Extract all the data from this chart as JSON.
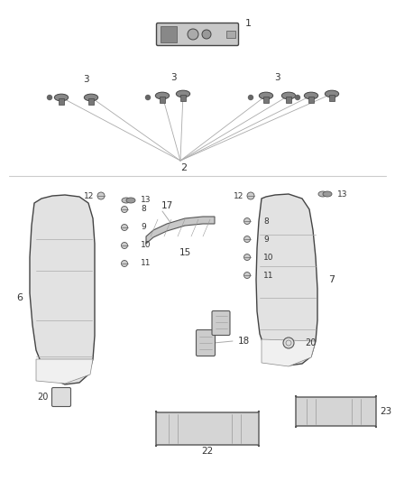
{
  "bg_color": "#ffffff",
  "line_color": "#555555",
  "text_color": "#333333",
  "fig_width": 4.38,
  "fig_height": 5.33,
  "dpi": 100
}
